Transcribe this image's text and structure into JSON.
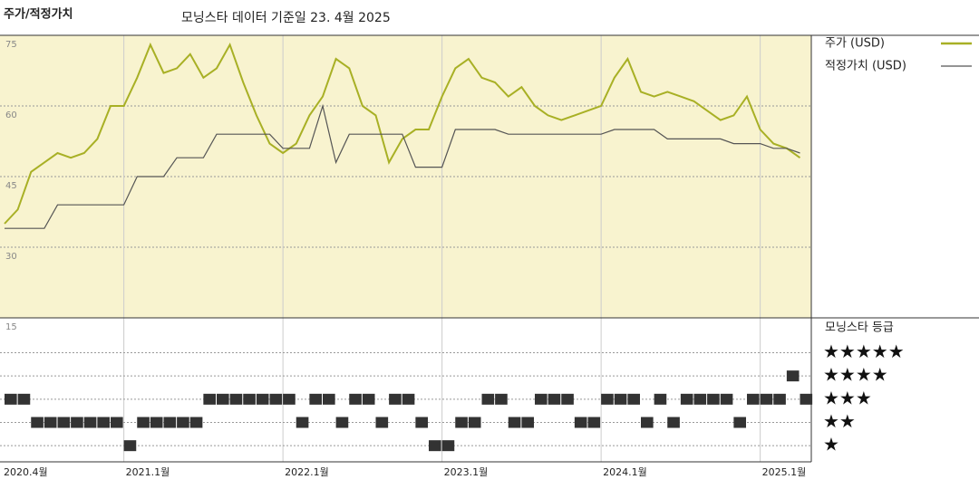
{
  "chart_data": [
    {
      "type": "line",
      "title": "주가/적정가치",
      "subtitle": "모닝스타 데이터 기준일 23. 4월 2025",
      "x": [
        "2020-04",
        "2020-05",
        "2020-06",
        "2020-07",
        "2020-08",
        "2020-09",
        "2020-10",
        "2020-11",
        "2020-12",
        "2021-01",
        "2021-02",
        "2021-03",
        "2021-04",
        "2021-05",
        "2021-06",
        "2021-07",
        "2021-08",
        "2021-09",
        "2021-10",
        "2021-11",
        "2021-12",
        "2022-01",
        "2022-02",
        "2022-03",
        "2022-04",
        "2022-05",
        "2022-06",
        "2022-07",
        "2022-08",
        "2022-09",
        "2022-10",
        "2022-11",
        "2022-12",
        "2023-01",
        "2023-02",
        "2023-03",
        "2023-04",
        "2023-05",
        "2023-06",
        "2023-07",
        "2023-08",
        "2023-09",
        "2023-10",
        "2023-11",
        "2023-12",
        "2024-01",
        "2024-02",
        "2024-03",
        "2024-04",
        "2024-05",
        "2024-06",
        "2024-07",
        "2024-08",
        "2024-09",
        "2024-10",
        "2024-11",
        "2024-12",
        "2025-01",
        "2025-02",
        "2025-03",
        "2025-04"
      ],
      "series": [
        {
          "name": "주가 (USD)",
          "color": "#a8b025",
          "values": [
            35,
            38,
            46,
            48,
            50,
            49,
            50,
            53,
            60,
            60,
            66,
            73,
            67,
            68,
            71,
            66,
            68,
            73,
            65,
            58,
            52,
            50,
            52,
            58,
            62,
            70,
            68,
            60,
            58,
            48,
            53,
            55,
            55,
            62,
            68,
            70,
            66,
            65,
            62,
            64,
            60,
            58,
            57,
            58,
            59,
            60,
            66,
            70,
            63,
            62,
            63,
            62,
            61,
            59,
            57,
            58,
            62,
            55,
            52,
            51,
            49
          ]
        },
        {
          "name": "적정가치 (USD)",
          "color": "#555555",
          "values": [
            34,
            34,
            34,
            34,
            39,
            39,
            39,
            39,
            39,
            39,
            45,
            45,
            45,
            49,
            49,
            49,
            54,
            54,
            54,
            54,
            54,
            51,
            51,
            51,
            60,
            48,
            54,
            54,
            54,
            54,
            54,
            47,
            47,
            47,
            55,
            55,
            55,
            55,
            54,
            54,
            54,
            54,
            54,
            54,
            54,
            54,
            55,
            55,
            55,
            55,
            53,
            53,
            53,
            53,
            53,
            52,
            52,
            52,
            51,
            51,
            50
          ]
        }
      ],
      "ylim": [
        15,
        75
      ],
      "yticks": [
        15,
        30,
        45,
        60,
        75
      ],
      "xticks": [
        {
          "value": "2020-04",
          "label": "2020.4월"
        },
        {
          "value": "2021-01",
          "label": "2021.1월"
        },
        {
          "value": "2022-01",
          "label": "2022.1월"
        },
        {
          "value": "2023-01",
          "label": "2023.1월"
        },
        {
          "value": "2024-01",
          "label": "2024.1월"
        },
        {
          "value": "2025-01",
          "label": "2025.1월"
        }
      ],
      "grid": true,
      "background": "#f8f3cf"
    },
    {
      "type": "rating",
      "title": "모닝스타 등급",
      "x": [
        "2020-04",
        "2020-05",
        "2020-06",
        "2020-07",
        "2020-08",
        "2020-09",
        "2020-10",
        "2020-11",
        "2020-12",
        "2021-01",
        "2021-02",
        "2021-03",
        "2021-04",
        "2021-05",
        "2021-06",
        "2021-07",
        "2021-08",
        "2021-09",
        "2021-10",
        "2021-11",
        "2021-12",
        "2022-01",
        "2022-02",
        "2022-03",
        "2022-04",
        "2022-05",
        "2022-06",
        "2022-07",
        "2022-08",
        "2022-09",
        "2022-10",
        "2022-11",
        "2022-12",
        "2023-01",
        "2023-02",
        "2023-03",
        "2023-04",
        "2023-05",
        "2023-06",
        "2023-07",
        "2023-08",
        "2023-09",
        "2023-10",
        "2023-11",
        "2023-12",
        "2024-01",
        "2024-02",
        "2024-03",
        "2024-04",
        "2024-05",
        "2024-06",
        "2024-07",
        "2024-08",
        "2024-09",
        "2024-10",
        "2024-11",
        "2024-12",
        "2025-01",
        "2025-02",
        "2025-03",
        "2025-04"
      ],
      "values": [
        3,
        3,
        2,
        2,
        2,
        2,
        2,
        2,
        2,
        1,
        2,
        2,
        2,
        2,
        2,
        3,
        3,
        3,
        3,
        3,
        3,
        3,
        2,
        3,
        3,
        2,
        3,
        3,
        2,
        3,
        3,
        2,
        1,
        1,
        2,
        2,
        3,
        3,
        2,
        2,
        3,
        3,
        3,
        2,
        2,
        3,
        3,
        3,
        2,
        3,
        2,
        3,
        3,
        3,
        3,
        2,
        3,
        3,
        3,
        4,
        3
      ],
      "color": "#333333",
      "ylim": [
        0.5,
        6.5
      ],
      "yticks": [
        {
          "value": 5,
          "label": "★★★★★"
        },
        {
          "value": 4,
          "label": "★★★★"
        },
        {
          "value": 3,
          "label": "★★★"
        },
        {
          "value": 2,
          "label": "★★"
        },
        {
          "value": 1,
          "label": "★"
        }
      ]
    }
  ]
}
